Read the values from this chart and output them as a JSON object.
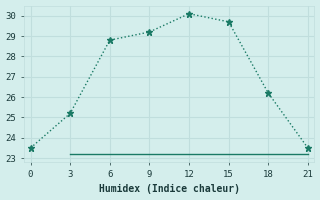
{
  "line1_x": [
    0,
    3,
    6,
    9,
    12,
    15,
    18,
    21
  ],
  "line1_y": [
    23.5,
    25.2,
    28.8,
    29.2,
    30.1,
    29.7,
    26.2,
    23.5
  ],
  "line2_x": [
    3,
    21
  ],
  "line2_y": [
    23.2,
    23.2
  ],
  "line_color": "#1a7a65",
  "bg_color": "#d4eeec",
  "grid_color": "#c0dedd",
  "xlabel": "Humidex (Indice chaleur)",
  "xlim": [
    -0.5,
    21.5
  ],
  "ylim": [
    22.8,
    30.5
  ],
  "xticks": [
    0,
    3,
    6,
    9,
    12,
    15,
    18,
    21
  ],
  "yticks": [
    23,
    24,
    25,
    26,
    27,
    28,
    29,
    30
  ],
  "font_color": "#1a3a3a",
  "markersize": 4.5
}
